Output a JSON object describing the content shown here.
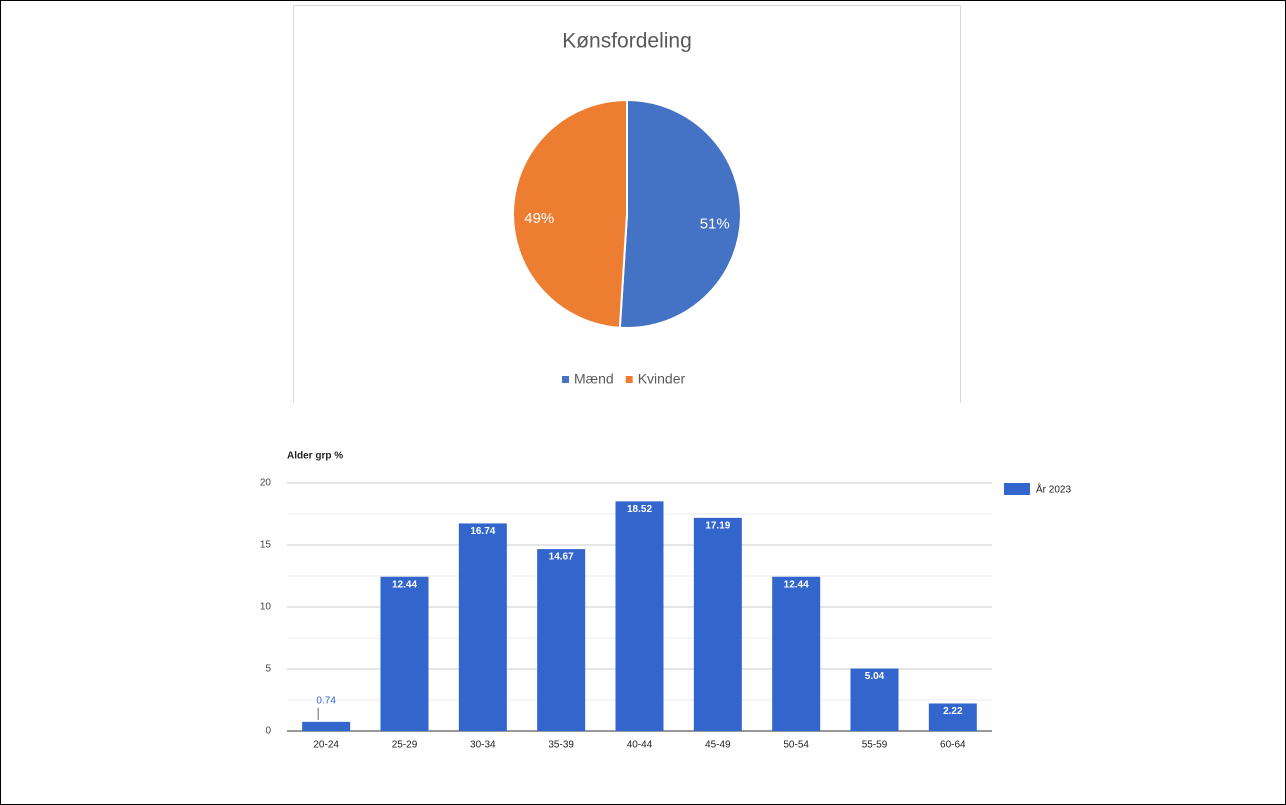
{
  "chart_data": [
    {
      "type": "pie",
      "title": "Kønsfordeling",
      "categories": [
        "Mænd",
        "Kvinder"
      ],
      "values": [
        51,
        49
      ],
      "value_labels": [
        "51%",
        "49%"
      ],
      "colors": [
        "#4472c4",
        "#ed7d31"
      ],
      "legend": "bottom"
    },
    {
      "type": "bar",
      "title": "Alder grp %",
      "categories": [
        "20-24",
        "25-29",
        "30-34",
        "35-39",
        "40-44",
        "45-49",
        "50-54",
        "55-59",
        "60-64"
      ],
      "series": [
        {
          "name": "År 2023",
          "color": "#3366cc",
          "values": [
            0.74,
            12.44,
            16.74,
            14.67,
            18.52,
            17.19,
            12.44,
            5.04,
            2.22
          ]
        }
      ],
      "ylim": [
        0,
        20
      ],
      "yticks": [
        0,
        5,
        10,
        15,
        20
      ],
      "minor_yticks": [
        2.5,
        7.5,
        12.5,
        17.5
      ],
      "grid": true,
      "legend": "right"
    }
  ]
}
